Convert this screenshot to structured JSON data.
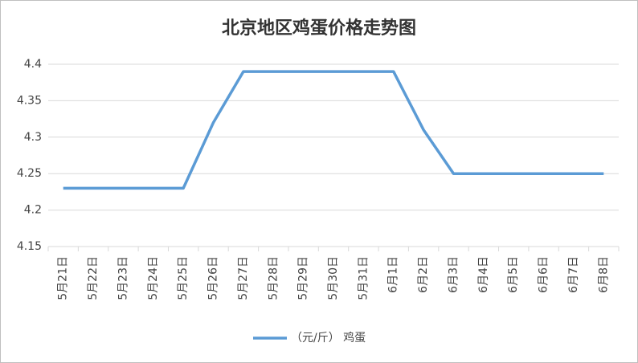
{
  "chart_data": {
    "type": "line",
    "title": "北京地区鸡蛋价格走势图",
    "categories": [
      "5月21日",
      "5月22日",
      "5月23日",
      "5月24日",
      "5月25日",
      "5月26日",
      "5月27日",
      "5月28日",
      "5月29日",
      "5月30日",
      "5月31日",
      "6月1日",
      "6月2日",
      "6月3日",
      "6月4日",
      "6月5日",
      "6月6日",
      "6月7日",
      "6月8日"
    ],
    "series": [
      {
        "name": "（元/斤） 鸡蛋",
        "color": "#5b9bd5",
        "values": [
          4.23,
          4.23,
          4.23,
          4.23,
          4.23,
          4.32,
          4.39,
          4.39,
          4.39,
          4.39,
          4.39,
          4.39,
          4.31,
          4.25,
          4.25,
          4.25,
          4.25,
          4.25,
          4.25
        ]
      }
    ],
    "ylim": [
      4.15,
      4.4
    ],
    "yticks": [
      4.15,
      4.2,
      4.25,
      4.3,
      4.35,
      4.4
    ],
    "grid": true,
    "legend": "bottom"
  }
}
